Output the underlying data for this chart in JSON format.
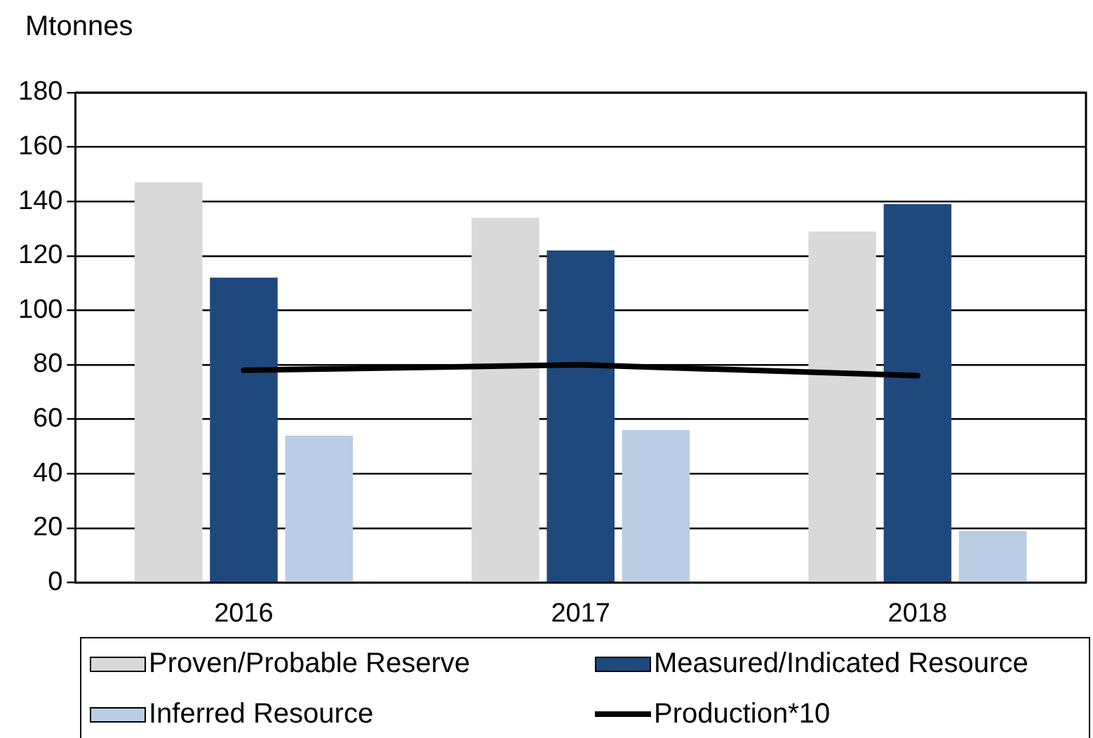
{
  "chart_data": {
    "type": "bar",
    "ylabel": "Mtonnes",
    "categories": [
      "2016",
      "2017",
      "2018"
    ],
    "series": [
      {
        "name": "Proven/Probable Reserve",
        "color": "#d9d9d9",
        "values": [
          147,
          134,
          129
        ]
      },
      {
        "name": "Measured/Indicated Resource",
        "color": "#1f497d",
        "values": [
          112,
          122,
          139
        ]
      },
      {
        "name": "Inferred Resource",
        "color": "#b9cde5",
        "values": [
          54,
          56,
          19
        ]
      },
      {
        "name": "Production*10",
        "type": "line",
        "color": "#000000",
        "values": [
          78,
          80,
          76
        ]
      }
    ],
    "ylim": [
      0,
      180
    ],
    "yticks": [
      0,
      20,
      40,
      60,
      80,
      100,
      120,
      140,
      160,
      180
    ],
    "grid": "y",
    "legend": "bottom",
    "marker": "none"
  }
}
